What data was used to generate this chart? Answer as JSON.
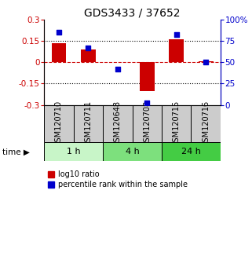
{
  "title": "GDS3433 / 37652",
  "samples": [
    "GSM120710",
    "GSM120711",
    "GSM120648",
    "GSM120708",
    "GSM120715",
    "GSM120716"
  ],
  "log10_ratio": [
    0.135,
    0.09,
    0.0,
    -0.205,
    0.162,
    0.005
  ],
  "percentile_rank": [
    85,
    67,
    42,
    2,
    82,
    50
  ],
  "time_groups": [
    {
      "label": "1 h",
      "start": 0,
      "end": 2,
      "color": "#c8f5c8"
    },
    {
      "label": "4 h",
      "start": 2,
      "end": 4,
      "color": "#7de07d"
    },
    {
      "label": "24 h",
      "start": 4,
      "end": 6,
      "color": "#44cc44"
    }
  ],
  "bar_color": "#cc0000",
  "dot_color": "#0000cc",
  "ylim_left": [
    -0.3,
    0.3
  ],
  "ylim_right": [
    0,
    100
  ],
  "yticks_left": [
    -0.3,
    -0.15,
    0,
    0.15,
    0.3
  ],
  "yticks_right": [
    0,
    25,
    50,
    75,
    100
  ],
  "ytick_labels_left": [
    "-0.3",
    "-0.15",
    "0",
    "0.15",
    "0.3"
  ],
  "ytick_labels_right": [
    "0",
    "25",
    "50",
    "75",
    "100%"
  ],
  "hlines": [
    0.15,
    -0.15
  ],
  "zero_line": 0,
  "sample_box_color": "#cccccc",
  "title_fontsize": 10,
  "tick_fontsize": 7.5,
  "label_fontsize": 7,
  "legend_fontsize": 7,
  "time_label": "time",
  "bar_width": 0.5,
  "dot_size": 25
}
